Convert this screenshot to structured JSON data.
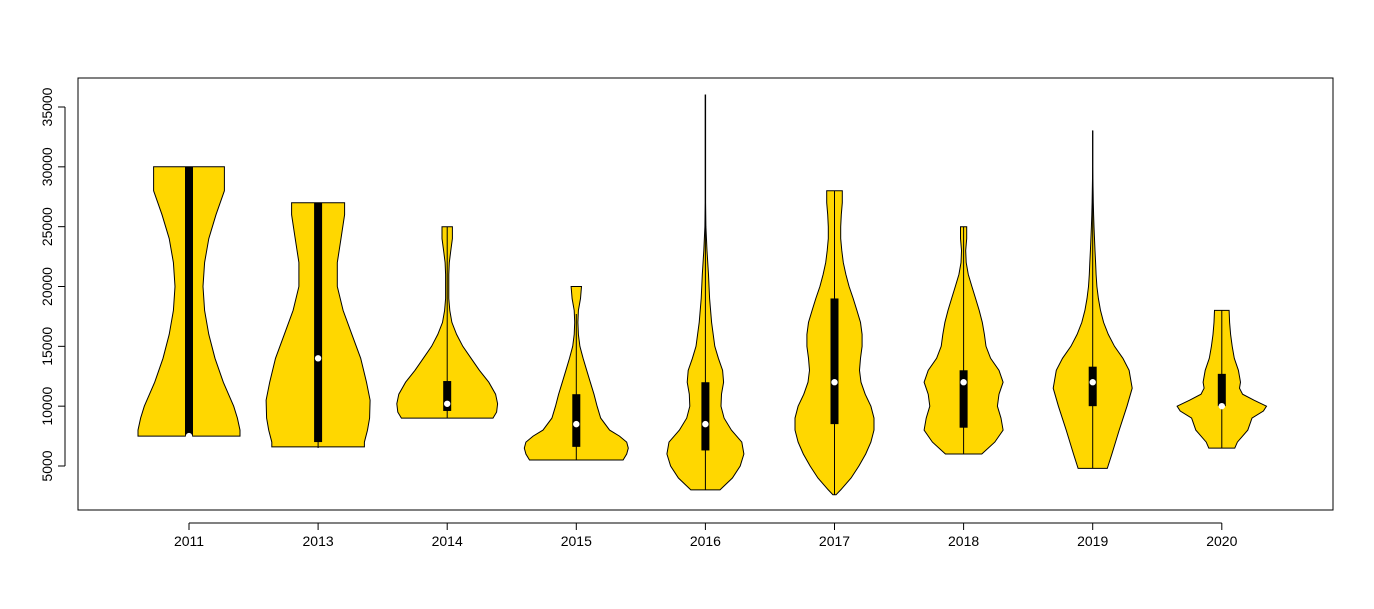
{
  "colors": {
    "violin_fill": "#FFD700",
    "outline": "#000000",
    "median_point": "#FFFFFF",
    "background": "#FFFFFF"
  },
  "chart_data": {
    "type": "violin",
    "title": "",
    "xlabel": "",
    "ylabel": "",
    "ylim": [
      2000,
      37000
    ],
    "y_ticks": [
      5000,
      10000,
      15000,
      20000,
      25000,
      30000,
      35000
    ],
    "y_tick_labels": [
      "5000",
      "10000",
      "15000",
      "20000",
      "25000",
      "30000",
      "35000"
    ],
    "grid": false,
    "legend": "none",
    "categories": [
      "2011",
      "2013",
      "2014",
      "2015",
      "2016",
      "2017",
      "2018",
      "2019",
      "2020"
    ],
    "series": [
      {
        "category": "2011",
        "min": 7500,
        "q1": 7500,
        "median": 7500,
        "q3": 30000,
        "max": 30000,
        "density": [
          [
            7500,
            0.98
          ],
          [
            8000,
            0.98
          ],
          [
            9000,
            0.93
          ],
          [
            10000,
            0.86
          ],
          [
            12000,
            0.66
          ],
          [
            14000,
            0.5
          ],
          [
            16000,
            0.38
          ],
          [
            18000,
            0.3
          ],
          [
            20000,
            0.27
          ],
          [
            22000,
            0.3
          ],
          [
            24000,
            0.38
          ],
          [
            26000,
            0.52
          ],
          [
            28000,
            0.68
          ],
          [
            30000,
            0.68
          ]
        ]
      },
      {
        "category": "2013",
        "min": 6500,
        "q1": 7000,
        "median": 14000,
        "q3": 27000,
        "max": 27000,
        "density": [
          [
            6600,
            0.89
          ],
          [
            7000,
            0.89
          ],
          [
            8000,
            0.95
          ],
          [
            9000,
            0.99
          ],
          [
            10500,
            1.0
          ],
          [
            12000,
            0.93
          ],
          [
            14000,
            0.82
          ],
          [
            16000,
            0.65
          ],
          [
            18000,
            0.48
          ],
          [
            20000,
            0.37
          ],
          [
            22000,
            0.37
          ],
          [
            24000,
            0.44
          ],
          [
            26000,
            0.51
          ],
          [
            27000,
            0.51
          ]
        ]
      },
      {
        "category": "2014",
        "min": 9000,
        "q1": 9600,
        "median": 10200,
        "q3": 12100,
        "max": 25000,
        "density": [
          [
            9000,
            0.88
          ],
          [
            9500,
            0.95
          ],
          [
            10200,
            0.97
          ],
          [
            11000,
            0.93
          ],
          [
            12000,
            0.8
          ],
          [
            13000,
            0.62
          ],
          [
            14000,
            0.46
          ],
          [
            15000,
            0.3
          ],
          [
            16000,
            0.18
          ],
          [
            17000,
            0.09
          ],
          [
            18000,
            0.05
          ],
          [
            19000,
            0.03
          ],
          [
            20000,
            0.03
          ],
          [
            21000,
            0.03
          ],
          [
            22000,
            0.04
          ],
          [
            23000,
            0.07
          ],
          [
            24000,
            0.1
          ],
          [
            25000,
            0.1
          ]
        ]
      },
      {
        "category": "2015",
        "min": 5500,
        "q1": 6600,
        "median": 8500,
        "q3": 11000,
        "max": 17700,
        "density": [
          [
            5500,
            0.9
          ],
          [
            6000,
            0.97
          ],
          [
            6500,
            1.0
          ],
          [
            7000,
            0.97
          ],
          [
            7500,
            0.83
          ],
          [
            8000,
            0.64
          ],
          [
            9000,
            0.47
          ],
          [
            10000,
            0.4
          ],
          [
            11000,
            0.34
          ],
          [
            12000,
            0.27
          ],
          [
            13000,
            0.2
          ],
          [
            14000,
            0.13
          ],
          [
            15000,
            0.07
          ],
          [
            16000,
            0.04
          ],
          [
            17000,
            0.03
          ],
          [
            18000,
            0.04
          ],
          [
            19000,
            0.08
          ],
          [
            20000,
            0.1
          ]
        ]
      },
      {
        "category": "2016",
        "min": 3000,
        "q1": 6300,
        "median": 8500,
        "q3": 12000,
        "max": 36000,
        "density": [
          [
            3000,
            0.28
          ],
          [
            4000,
            0.52
          ],
          [
            5000,
            0.67
          ],
          [
            6000,
            0.74
          ],
          [
            7000,
            0.7
          ],
          [
            8000,
            0.5
          ],
          [
            9000,
            0.36
          ],
          [
            10000,
            0.3
          ],
          [
            11000,
            0.31
          ],
          [
            12000,
            0.35
          ],
          [
            13000,
            0.33
          ],
          [
            14000,
            0.25
          ],
          [
            15000,
            0.18
          ],
          [
            17000,
            0.12
          ],
          [
            19000,
            0.08
          ],
          [
            21000,
            0.06
          ],
          [
            23000,
            0.03
          ],
          [
            25000,
            0.01
          ],
          [
            27000,
            0.004
          ],
          [
            30000,
            0.004
          ],
          [
            33000,
            0.004
          ],
          [
            36000,
            0.004
          ]
        ]
      },
      {
        "category": "2017",
        "min": 2600,
        "q1": 8500,
        "median": 12000,
        "q3": 19000,
        "max": 28000,
        "density": [
          [
            2600,
            0.03
          ],
          [
            3000,
            0.12
          ],
          [
            4000,
            0.32
          ],
          [
            5000,
            0.47
          ],
          [
            6000,
            0.6
          ],
          [
            7000,
            0.7
          ],
          [
            8000,
            0.76
          ],
          [
            9000,
            0.76
          ],
          [
            10000,
            0.7
          ],
          [
            11000,
            0.59
          ],
          [
            12000,
            0.51
          ],
          [
            13000,
            0.48
          ],
          [
            14000,
            0.5
          ],
          [
            15000,
            0.53
          ],
          [
            16000,
            0.53
          ],
          [
            17000,
            0.5
          ],
          [
            18000,
            0.43
          ],
          [
            19000,
            0.36
          ],
          [
            20000,
            0.28
          ],
          [
            21000,
            0.22
          ],
          [
            22000,
            0.17
          ],
          [
            23000,
            0.14
          ],
          [
            24000,
            0.12
          ],
          [
            25000,
            0.12
          ],
          [
            26000,
            0.13
          ],
          [
            27000,
            0.15
          ],
          [
            28000,
            0.15
          ]
        ]
      },
      {
        "category": "2018",
        "min": 6000,
        "q1": 8200,
        "median": 12000,
        "q3": 13000,
        "max": 25000,
        "density": [
          [
            6000,
            0.35
          ],
          [
            7000,
            0.6
          ],
          [
            8000,
            0.76
          ],
          [
            9000,
            0.72
          ],
          [
            10000,
            0.65
          ],
          [
            11000,
            0.68
          ],
          [
            12000,
            0.76
          ],
          [
            13000,
            0.68
          ],
          [
            14000,
            0.52
          ],
          [
            15000,
            0.43
          ],
          [
            16000,
            0.4
          ],
          [
            17000,
            0.36
          ],
          [
            18000,
            0.3
          ],
          [
            19000,
            0.23
          ],
          [
            20000,
            0.16
          ],
          [
            21000,
            0.09
          ],
          [
            22000,
            0.05
          ],
          [
            23000,
            0.04
          ],
          [
            24000,
            0.06
          ],
          [
            25000,
            0.06
          ]
        ]
      },
      {
        "category": "2019",
        "min": 4800,
        "q1": 10000,
        "median": 12000,
        "q3": 13300,
        "max": 33000,
        "density": [
          [
            4800,
            0.28
          ],
          [
            6000,
            0.37
          ],
          [
            8000,
            0.51
          ],
          [
            10000,
            0.66
          ],
          [
            11500,
            0.76
          ],
          [
            13000,
            0.7
          ],
          [
            14000,
            0.58
          ],
          [
            15000,
            0.42
          ],
          [
            16000,
            0.3
          ],
          [
            17000,
            0.21
          ],
          [
            18000,
            0.15
          ],
          [
            19000,
            0.11
          ],
          [
            20000,
            0.08
          ],
          [
            21000,
            0.065
          ],
          [
            22000,
            0.055
          ],
          [
            23000,
            0.045
          ],
          [
            24000,
            0.035
          ],
          [
            25000,
            0.025
          ],
          [
            26000,
            0.018
          ],
          [
            27000,
            0.012
          ],
          [
            28000,
            0.008
          ],
          [
            29000,
            0.004
          ],
          [
            30000,
            0.002
          ],
          [
            33000,
            0.002
          ]
        ]
      },
      {
        "category": "2020",
        "min": 6500,
        "q1": 10000,
        "median": 10000,
        "q3": 12700,
        "max": 18000,
        "density": [
          [
            6500,
            0.25
          ],
          [
            7000,
            0.3
          ],
          [
            8000,
            0.5
          ],
          [
            9000,
            0.58
          ],
          [
            9600,
            0.8
          ],
          [
            10000,
            0.86
          ],
          [
            10500,
            0.62
          ],
          [
            11000,
            0.4
          ],
          [
            11500,
            0.34
          ],
          [
            12000,
            0.36
          ],
          [
            13000,
            0.32
          ],
          [
            14000,
            0.24
          ],
          [
            15000,
            0.2
          ],
          [
            16000,
            0.17
          ],
          [
            17000,
            0.15
          ],
          [
            18000,
            0.14
          ]
        ]
      }
    ]
  }
}
